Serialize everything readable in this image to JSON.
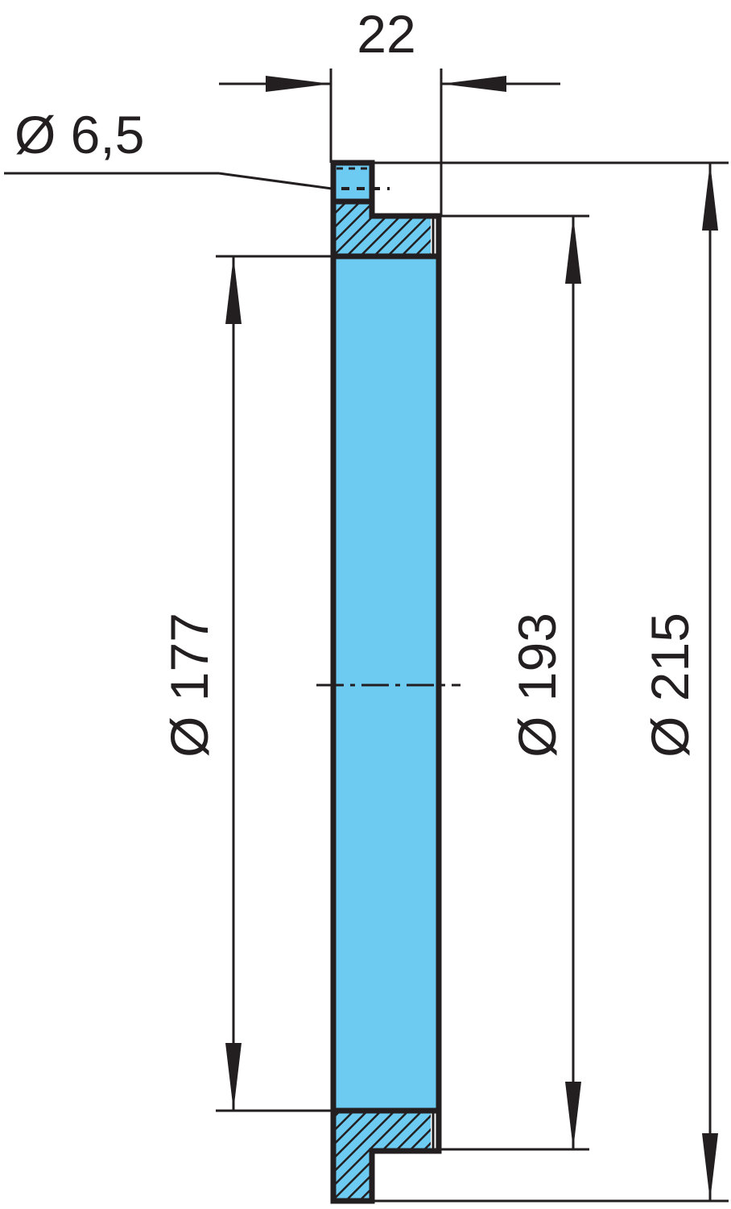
{
  "dimensions": {
    "width": "22",
    "hole": "Ø 6,5",
    "inner_diameter": "Ø 177",
    "step_diameter": "Ø 193",
    "outer_diameter": "Ø 215"
  },
  "colors": {
    "part_fill": "#6dcbf2",
    "line": "#231f20"
  }
}
